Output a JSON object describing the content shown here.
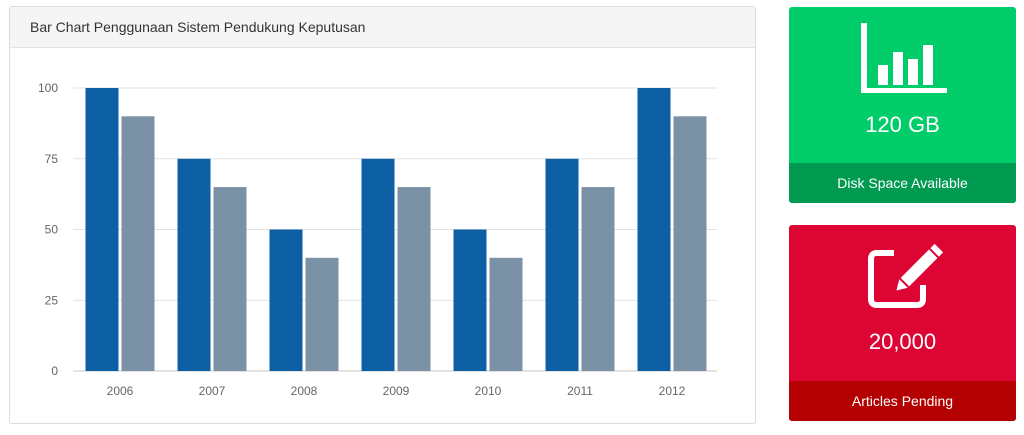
{
  "panel": {
    "title": "Bar Chart Penggunaan Sistem Pendukung Keputusan"
  },
  "chart_data": {
    "type": "bar",
    "title": "",
    "xlabel": "",
    "ylabel": "",
    "categories": [
      "2006",
      "2007",
      "2008",
      "2009",
      "2010",
      "2011",
      "2012"
    ],
    "series": [
      {
        "color": "#0e60a5",
        "values": [
          100,
          75,
          50,
          75,
          50,
          75,
          100
        ]
      },
      {
        "color": "#7b91a5",
        "values": [
          90,
          65,
          40,
          65,
          40,
          65,
          90
        ]
      }
    ],
    "ylim": [
      0,
      100
    ],
    "yticks": [
      "0",
      "25",
      "50",
      "75",
      "100"
    ],
    "grid": true,
    "legend": "none"
  },
  "tiles": {
    "disk": {
      "icon": "bar-chart-icon",
      "value": "120 GB",
      "label": "Disk Space Available",
      "color": "#00cc6a",
      "footer_color": "#009a51"
    },
    "articles": {
      "icon": "edit-icon",
      "value": "20,000",
      "label": "Articles Pending",
      "color": "#dc0533",
      "footer_color": "#b30000"
    }
  }
}
